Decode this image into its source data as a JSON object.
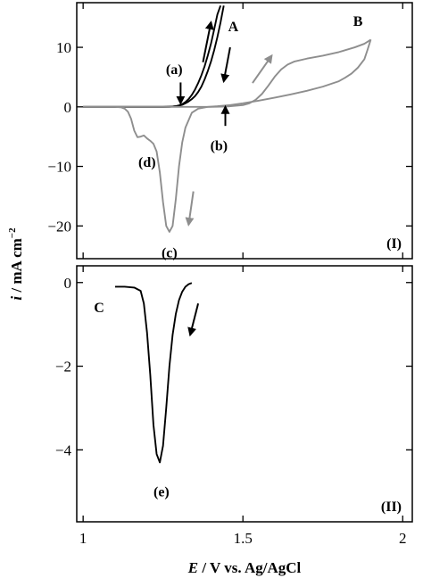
{
  "chart_data": [
    {
      "id": "I",
      "type": "line",
      "panel_label": "(I)",
      "xlim": [
        0.98,
        2.03
      ],
      "ylim": [
        -25.5,
        17.5
      ],
      "yticks": [
        -20,
        -10,
        0,
        10
      ],
      "ytick_labels": [
        "−20",
        "−10",
        "0",
        "10"
      ],
      "grid": false,
      "series": [
        {
          "name": "A",
          "color": "#000000",
          "x": [
            1.0,
            1.1,
            1.18,
            1.22,
            1.25,
            1.27,
            1.28,
            1.29,
            1.3,
            1.31,
            1.32,
            1.33,
            1.34,
            1.35,
            1.36,
            1.37,
            1.38,
            1.39,
            1.4,
            1.41,
            1.42,
            1.43,
            1.44
          ],
          "y": [
            0,
            0,
            0,
            0,
            0,
            0,
            0.05,
            0.1,
            0.2,
            0.35,
            0.6,
            0.9,
            1.3,
            1.8,
            2.5,
            3.4,
            4.6,
            6.0,
            7.6,
            9.5,
            11.7,
            14.2,
            17.0
          ]
        },
        {
          "name": "A",
          "color": "#000000",
          "x": [
            1.43,
            1.42,
            1.41,
            1.4,
            1.39,
            1.38,
            1.37,
            1.36,
            1.35,
            1.34,
            1.33,
            1.32,
            1.31,
            1.3,
            1.29,
            1.28,
            1.25,
            1.2,
            1.1,
            1.0
          ],
          "y": [
            17.0,
            15.5,
            13.0,
            10.6,
            8.6,
            6.8,
            5.3,
            4.0,
            2.9,
            2.0,
            1.3,
            0.8,
            0.45,
            0.25,
            0.12,
            0.05,
            0,
            0,
            0,
            0
          ]
        },
        {
          "name": "B",
          "color": "#8e8e8e",
          "x": [
            1.0,
            1.1,
            1.2,
            1.3,
            1.4,
            1.45,
            1.5,
            1.52,
            1.54,
            1.56,
            1.58,
            1.6,
            1.62,
            1.64,
            1.66,
            1.7,
            1.75,
            1.8,
            1.85,
            1.88,
            1.895,
            1.9
          ],
          "y": [
            0,
            0,
            0,
            0,
            0,
            0.05,
            0.3,
            0.6,
            1.2,
            2.2,
            3.6,
            5.1,
            6.3,
            7.1,
            7.6,
            8.1,
            8.6,
            9.2,
            10.0,
            10.6,
            11.1,
            11.3
          ],
          "y_note": "B"
        },
        {
          "name": "B",
          "color": "#8e8e8e",
          "x": [
            1.9,
            1.89,
            1.88,
            1.86,
            1.84,
            1.82,
            1.8,
            1.75,
            1.7,
            1.65,
            1.6,
            1.55,
            1.5,
            1.46,
            1.42,
            1.39,
            1.36,
            1.34,
            1.32,
            1.31,
            1.3,
            1.29,
            1.28,
            1.27,
            1.26,
            1.25,
            1.24,
            1.23,
            1.22,
            1.21,
            1.2,
            1.19,
            1.18,
            1.17,
            1.16,
            1.15,
            1.14,
            1.13,
            1.12,
            1.1,
            1.05,
            1.0
          ],
          "y": [
            11.3,
            9.6,
            8.0,
            6.6,
            5.6,
            4.9,
            4.3,
            3.4,
            2.7,
            2.1,
            1.55,
            1.05,
            0.6,
            0.3,
            0.1,
            0,
            -0.3,
            -1.0,
            -3.5,
            -6.0,
            -10.0,
            -15.5,
            -20.0,
            -21.0,
            -20.0,
            -16.0,
            -11.0,
            -7.5,
            -6.2,
            -5.7,
            -5.3,
            -4.8,
            -5.0,
            -5.1,
            -4.0,
            -2.0,
            -0.8,
            -0.3,
            -0.1,
            0,
            0,
            0
          ]
        }
      ],
      "annotations": [
        {
          "text": "A",
          "x": 1.47,
          "y": 13.6
        },
        {
          "text": "B",
          "x": 1.86,
          "y": 14.5
        },
        {
          "text": "(a)",
          "x": 1.285,
          "y": 6.4
        },
        {
          "text": "(b)",
          "x": 1.425,
          "y": -6.4
        },
        {
          "text": "(c)",
          "x": 1.27,
          "y": -24.4
        },
        {
          "text": "(d)",
          "x": 1.2,
          "y": -9.2
        }
      ],
      "arrows": [
        {
          "color": "#000000",
          "from": [
            1.375,
            7.5
          ],
          "to": [
            1.4,
            14.2
          ]
        },
        {
          "color": "#000000",
          "from": [
            1.46,
            10.0
          ],
          "to": [
            1.44,
            4.3
          ]
        },
        {
          "color": "#000000",
          "from": [
            1.305,
            4.1
          ],
          "to": [
            1.305,
            0.6
          ]
        },
        {
          "color": "#000000",
          "from": [
            1.445,
            -3.2
          ],
          "to": [
            1.445,
            0.0
          ]
        },
        {
          "color": "#8e8e8e",
          "from": [
            1.53,
            4.0
          ],
          "to": [
            1.59,
            8.6
          ]
        },
        {
          "color": "#8e8e8e",
          "from": [
            1.345,
            -14.2
          ],
          "to": [
            1.33,
            -19.8
          ]
        }
      ]
    },
    {
      "id": "II",
      "type": "line",
      "panel_label": "(II)",
      "xlim": [
        0.98,
        2.03
      ],
      "ylim": [
        -5.72,
        0.4
      ],
      "xticks": [
        1,
        1.5,
        2
      ],
      "xtick_labels": [
        "1",
        "1.5",
        "2"
      ],
      "yticks": [
        -4,
        -2,
        0
      ],
      "ytick_labels": [
        "−4",
        "−2",
        "0"
      ],
      "xlabel_italic": "E",
      "xlabel_rest": " / V vs. Ag/AgCl",
      "grid": false,
      "series": [
        {
          "name": "C",
          "color": "#000000",
          "x": [
            1.1,
            1.13,
            1.16,
            1.18,
            1.19,
            1.2,
            1.21,
            1.22,
            1.23,
            1.24,
            1.25,
            1.26,
            1.27,
            1.28,
            1.29,
            1.3,
            1.31,
            1.32,
            1.33,
            1.34
          ],
          "y": [
            -0.1,
            -0.1,
            -0.12,
            -0.2,
            -0.5,
            -1.2,
            -2.2,
            -3.4,
            -4.1,
            -4.3,
            -3.9,
            -3.0,
            -2.0,
            -1.25,
            -0.75,
            -0.42,
            -0.22,
            -0.1,
            -0.04,
            -0.01
          ]
        }
      ],
      "annotations": [
        {
          "text": "C",
          "x": 1.05,
          "y": -0.58
        },
        {
          "text": "(e)",
          "x": 1.245,
          "y": -4.98
        }
      ],
      "arrows": [
        {
          "color": "#000000",
          "from": [
            1.36,
            -0.5
          ],
          "to": [
            1.335,
            -1.25
          ]
        }
      ]
    }
  ],
  "ylabel_italic": "i",
  "ylabel_rest": " / mA cm",
  "ylabel_sup": "−2"
}
